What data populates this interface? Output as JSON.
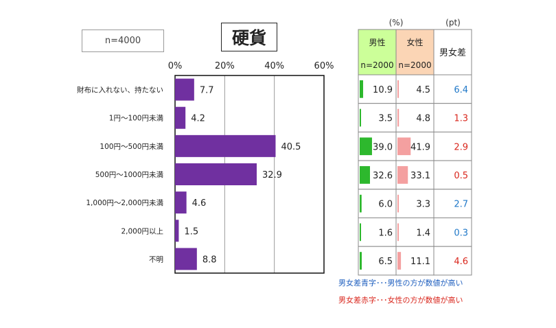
{
  "sample_label": "n=4000",
  "chart_data": {
    "type": "bar",
    "orientation": "horizontal",
    "title": "硬貨",
    "categories": [
      "財布に入れない、持たない",
      "1円～100円未満",
      "100円～500円未満",
      "500円～1000円未満",
      "1,000円～2,000円未満",
      "2,000円以上",
      "不明"
    ],
    "values": [
      7.7,
      4.2,
      40.5,
      32.9,
      4.6,
      1.5,
      8.8
    ],
    "x_ticks": [
      "0%",
      "20%",
      "40%",
      "60%"
    ],
    "xlim": [
      0,
      60
    ],
    "bar_color": "#7030a0"
  },
  "table": {
    "unit_pct": "(%)",
    "unit_pt": "(pt)",
    "headers": {
      "male": "男性",
      "male_n": "n=2000",
      "female": "女性",
      "female_n": "n=2000",
      "diff": "男女差"
    },
    "male": [
      10.9,
      3.5,
      39.0,
      32.6,
      6.0,
      1.6,
      6.5
    ],
    "female": [
      4.5,
      4.8,
      41.9,
      33.1,
      3.3,
      1.4,
      11.1
    ],
    "diff": [
      6.4,
      1.3,
      2.9,
      0.5,
      2.7,
      0.3,
      4.6
    ],
    "diff_colors": [
      "#1f78c8",
      "#d9261c",
      "#d9261c",
      "#d9261c",
      "#1f78c8",
      "#1f78c8",
      "#d9261c"
    ],
    "male_color": "#2db82d",
    "female_color": "#f4a0a0",
    "male_header_bg": "#ccff99",
    "female_header_bg": "#fbd5b5"
  },
  "notes": {
    "blue": "男女差青字･･･男性の方が数値が高い",
    "red": "男女差赤字･･･女性の方が数値が高い"
  }
}
